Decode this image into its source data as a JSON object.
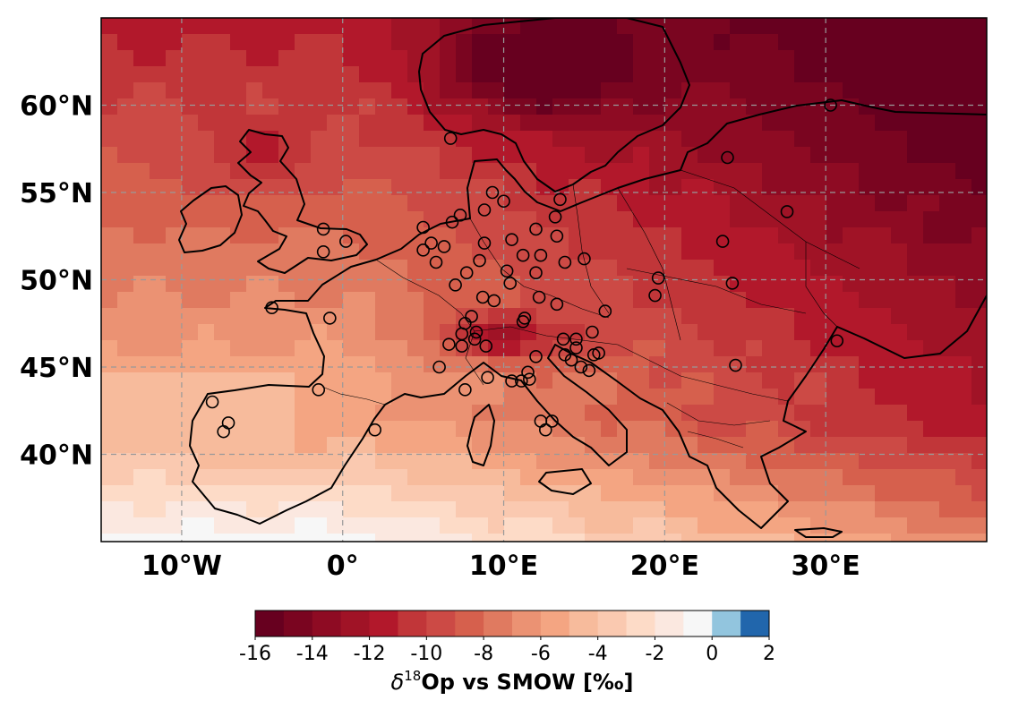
{
  "map": {
    "extent": {
      "lon_min": -15,
      "lon_max": 40,
      "lat_min": 35,
      "lat_max": 65
    },
    "lat_ticks": [
      {
        "value": 60,
        "label": "60°N"
      },
      {
        "value": 55,
        "label": "55°N"
      },
      {
        "value": 50,
        "label": "50°N"
      },
      {
        "value": 45,
        "label": "45°N"
      },
      {
        "value": 40,
        "label": "40°N"
      }
    ],
    "lon_ticks": [
      {
        "value": -10,
        "label": "10°W"
      },
      {
        "value": 0,
        "label": "0°"
      },
      {
        "value": 10,
        "label": "10°E"
      },
      {
        "value": 20,
        "label": "20°E"
      },
      {
        "value": 30,
        "label": "30°E"
      }
    ],
    "gridlines": true
  },
  "colorbar": {
    "title_symbol": "δ",
    "title_superscript": "18",
    "title_rest": "Op vs SMOW [‰]",
    "tick_values": [
      -16,
      -14,
      -12,
      -10,
      -8,
      -6,
      -4,
      -2,
      0,
      2
    ],
    "tick_labels": [
      "-16",
      "-14",
      "-12",
      "-10",
      "-8",
      "-6",
      "-4",
      "-2",
      "0",
      "2"
    ],
    "bins": [
      {
        "from": -16,
        "to": -15,
        "color": "#67001f"
      },
      {
        "from": -15,
        "to": -14,
        "color": "#7a0520"
      },
      {
        "from": -14,
        "to": -13,
        "color": "#8e0b23"
      },
      {
        "from": -13,
        "to": -12,
        "color": "#a01326"
      },
      {
        "from": -12,
        "to": -11,
        "color": "#b2182b"
      },
      {
        "from": -11,
        "to": -10,
        "color": "#c13639"
      },
      {
        "from": -10,
        "to": -9,
        "color": "#cc4a45"
      },
      {
        "from": -9,
        "to": -8,
        "color": "#d6604d"
      },
      {
        "from": -8,
        "to": -7,
        "color": "#e07a60"
      },
      {
        "from": -7,
        "to": -6,
        "color": "#eb9273"
      },
      {
        "from": -6,
        "to": -5,
        "color": "#f4a582"
      },
      {
        "from": -5,
        "to": -4,
        "color": "#f7bb9c"
      },
      {
        "from": -4,
        "to": -3,
        "color": "#fac9b0"
      },
      {
        "from": -3,
        "to": -2,
        "color": "#fddbc7"
      },
      {
        "from": -2,
        "to": -1,
        "color": "#fbe8e0"
      },
      {
        "from": -1,
        "to": 0,
        "color": "#f7f7f7"
      },
      {
        "from": 0,
        "to": 1,
        "color": "#92c5de"
      },
      {
        "from": 1,
        "to": 2,
        "color": "#2166ac"
      }
    ]
  },
  "sites": [
    {
      "lon": 6.7,
      "lat": 58.1
    },
    {
      "lon": -1.2,
      "lat": 52.9
    },
    {
      "lon": -1.2,
      "lat": 51.6
    },
    {
      "lon": 0.2,
      "lat": 52.2
    },
    {
      "lon": 5.0,
      "lat": 53.0
    },
    {
      "lon": 5.5,
      "lat": 52.1
    },
    {
      "lon": 5.0,
      "lat": 51.7
    },
    {
      "lon": 5.8,
      "lat": 51.0
    },
    {
      "lon": 6.3,
      "lat": 51.9
    },
    {
      "lon": 6.8,
      "lat": 53.3
    },
    {
      "lon": 7.3,
      "lat": 53.7
    },
    {
      "lon": 8.8,
      "lat": 54.0
    },
    {
      "lon": 9.3,
      "lat": 55.0
    },
    {
      "lon": 10.0,
      "lat": 54.5
    },
    {
      "lon": 13.5,
      "lat": 54.6
    },
    {
      "lon": 13.2,
      "lat": 53.6
    },
    {
      "lon": 13.3,
      "lat": 52.5
    },
    {
      "lon": 12.0,
      "lat": 52.9
    },
    {
      "lon": 10.5,
      "lat": 52.3
    },
    {
      "lon": 8.8,
      "lat": 52.1
    },
    {
      "lon": 8.5,
      "lat": 51.1
    },
    {
      "lon": 7.7,
      "lat": 50.4
    },
    {
      "lon": 7.0,
      "lat": 49.7
    },
    {
      "lon": 10.2,
      "lat": 50.5
    },
    {
      "lon": 11.2,
      "lat": 51.4
    },
    {
      "lon": 12.3,
      "lat": 51.4
    },
    {
      "lon": 13.8,
      "lat": 51.0
    },
    {
      "lon": 15.0,
      "lat": 51.2
    },
    {
      "lon": 12.0,
      "lat": 50.4
    },
    {
      "lon": 10.4,
      "lat": 49.8
    },
    {
      "lon": 8.7,
      "lat": 49.0
    },
    {
      "lon": 9.4,
      "lat": 48.8
    },
    {
      "lon": 12.2,
      "lat": 49.0
    },
    {
      "lon": 13.3,
      "lat": 48.6
    },
    {
      "lon": 16.3,
      "lat": 48.2
    },
    {
      "lon": 8.0,
      "lat": 47.9
    },
    {
      "lon": 7.6,
      "lat": 47.5
    },
    {
      "lon": 7.4,
      "lat": 46.9
    },
    {
      "lon": 8.3,
      "lat": 47.0
    },
    {
      "lon": 6.6,
      "lat": 46.3
    },
    {
      "lon": 7.4,
      "lat": 46.2
    },
    {
      "lon": 8.9,
      "lat": 46.2
    },
    {
      "lon": 8.2,
      "lat": 46.6
    },
    {
      "lon": 11.2,
      "lat": 47.6
    },
    {
      "lon": 11.3,
      "lat": 47.8
    },
    {
      "lon": 13.7,
      "lat": 46.6
    },
    {
      "lon": 14.5,
      "lat": 46.6
    },
    {
      "lon": 15.5,
      "lat": 47.0
    },
    {
      "lon": 14.5,
      "lat": 46.1
    },
    {
      "lon": 13.8,
      "lat": 45.7
    },
    {
      "lon": 14.2,
      "lat": 45.4
    },
    {
      "lon": 14.8,
      "lat": 45.0
    },
    {
      "lon": 15.3,
      "lat": 44.8
    },
    {
      "lon": 15.9,
      "lat": 45.8
    },
    {
      "lon": 12.0,
      "lat": 45.6
    },
    {
      "lon": 11.5,
      "lat": 44.7
    },
    {
      "lon": 10.5,
      "lat": 44.2
    },
    {
      "lon": 9.0,
      "lat": 44.4
    },
    {
      "lon": 7.6,
      "lat": 43.7
    },
    {
      "lon": 11.1,
      "lat": 44.2
    },
    {
      "lon": 11.6,
      "lat": 44.3
    },
    {
      "lon": 6.0,
      "lat": 45.0
    },
    {
      "lon": 12.3,
      "lat": 41.9
    },
    {
      "lon": 13.0,
      "lat": 41.9
    },
    {
      "lon": 12.6,
      "lat": 41.4
    },
    {
      "lon": 2.0,
      "lat": 41.4
    },
    {
      "lon": -0.8,
      "lat": 47.8
    },
    {
      "lon": -4.4,
      "lat": 48.4
    },
    {
      "lon": -1.5,
      "lat": 43.7
    },
    {
      "lon": -8.1,
      "lat": 43.0
    },
    {
      "lon": -7.1,
      "lat": 41.8
    },
    {
      "lon": -7.4,
      "lat": 41.3
    },
    {
      "lon": 19.6,
      "lat": 50.1
    },
    {
      "lon": 19.4,
      "lat": 49.1
    },
    {
      "lon": 23.6,
      "lat": 52.2
    },
    {
      "lon": 24.2,
      "lat": 49.8
    },
    {
      "lon": 27.6,
      "lat": 53.9
    },
    {
      "lon": 23.9,
      "lat": 57.0
    },
    {
      "lon": 30.3,
      "lat": 60.0
    },
    {
      "lon": 30.7,
      "lat": 46.5
    },
    {
      "lon": 24.4,
      "lat": 45.1
    },
    {
      "lon": 15.6,
      "lat": 45.7
    }
  ]
}
